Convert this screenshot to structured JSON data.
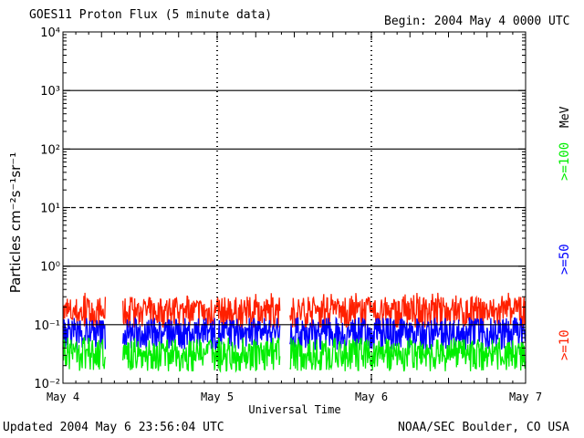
{
  "header": {
    "title": "GOES11 Proton Flux (5 minute data)",
    "begin": "Begin: 2004 May 4 0000 UTC"
  },
  "footer": {
    "updated": "Updated 2004 May  6 23:56:04 UTC",
    "source": "NOAA/SEC Boulder, CO USA"
  },
  "chart_data": {
    "type": "line",
    "title": "GOES11 Proton Flux (5 minute data)",
    "xlabel": "Universal Time",
    "ylabel": "Particles cm⁻²s⁻¹sr⁻¹",
    "y_scale": "log",
    "ylim": [
      0.01,
      10000
    ],
    "xlim": [
      "2004-05-04",
      "2004-05-07"
    ],
    "x_ticks": [
      "May 4",
      "May 5",
      "May 6",
      "May 7"
    ],
    "y_ticks": [
      "10⁻²",
      "10⁻¹",
      "10⁰",
      "10¹",
      "10²",
      "10³",
      "10⁴"
    ],
    "reference_lines": [
      {
        "value": 1000,
        "style": "solid"
      },
      {
        "value": 100,
        "style": "solid"
      },
      {
        "value": 10,
        "style": "dashed"
      },
      {
        "value": 1,
        "style": "solid"
      },
      {
        "value": 0.1,
        "style": "solid"
      }
    ],
    "data_gaps": [
      [
        "2004-05-04T06:40",
        "2004-05-04T09:20"
      ],
      [
        "2004-05-05T09:50",
        "2004-05-05T11:20"
      ]
    ],
    "unit_label": "MeV",
    "series": [
      {
        "name": ">=10",
        "color": "#ff2000",
        "typical_value": 0.16,
        "range": [
          0.09,
          0.35
        ]
      },
      {
        "name": ">=50",
        "color": "#0000ff",
        "typical_value": 0.07,
        "range": [
          0.03,
          0.13
        ]
      },
      {
        "name": ">=100",
        "color": "#00ee00",
        "typical_value": 0.03,
        "range": [
          0.015,
          0.06
        ]
      }
    ]
  }
}
